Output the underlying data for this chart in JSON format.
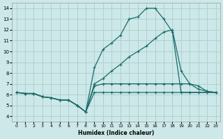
{
  "xlabel": "Humidex (Indice chaleur)",
  "bg_color": "#cde8e8",
  "grid_color": "#b0d0d0",
  "line_color": "#1a6b6b",
  "xlim": [
    -0.5,
    23.5
  ],
  "ylim": [
    3.5,
    14.5
  ],
  "xticks": [
    0,
    1,
    2,
    3,
    4,
    5,
    6,
    7,
    8,
    9,
    10,
    11,
    12,
    13,
    14,
    15,
    16,
    17,
    18,
    19,
    20,
    21,
    22,
    23
  ],
  "yticks": [
    4,
    5,
    6,
    7,
    8,
    9,
    10,
    11,
    12,
    13,
    14
  ],
  "lines": [
    {
      "x": [
        0,
        1,
        2,
        3,
        4,
        5,
        6,
        7,
        8,
        9,
        10,
        11,
        12,
        13,
        14,
        15,
        16,
        17,
        18,
        19,
        20,
        21,
        22,
        23
      ],
      "y": [
        6.2,
        6.1,
        6.1,
        5.8,
        5.7,
        5.5,
        5.5,
        5.0,
        4.4,
        8.5,
        10.2,
        10.8,
        11.5,
        13.0,
        13.2,
        14.0,
        14.0,
        13.0,
        11.8,
        6.2,
        6.2,
        6.2,
        6.2,
        6.2
      ]
    },
    {
      "x": [
        0,
        1,
        2,
        3,
        4,
        5,
        6,
        7,
        8,
        9,
        10,
        11,
        12,
        13,
        14,
        15,
        16,
        17,
        18,
        19,
        20,
        21,
        22,
        23
      ],
      "y": [
        6.2,
        6.1,
        6.1,
        5.8,
        5.7,
        5.5,
        5.5,
        5.0,
        4.4,
        7.0,
        7.5,
        8.2,
        8.8,
        9.5,
        10.0,
        10.5,
        11.2,
        11.8,
        12.0,
        8.2,
        7.0,
        6.5,
        6.3,
        6.2
      ]
    },
    {
      "x": [
        0,
        1,
        2,
        3,
        4,
        5,
        6,
        7,
        8,
        9,
        10,
        11,
        12,
        13,
        14,
        15,
        16,
        17,
        18,
        19,
        20,
        21,
        22,
        23
      ],
      "y": [
        6.2,
        6.1,
        6.1,
        5.8,
        5.7,
        5.5,
        5.5,
        5.0,
        4.4,
        6.8,
        7.0,
        7.0,
        7.0,
        7.0,
        7.0,
        7.0,
        7.0,
        7.0,
        7.0,
        7.0,
        7.0,
        6.8,
        6.3,
        6.2
      ]
    },
    {
      "x": [
        0,
        1,
        2,
        3,
        4,
        5,
        6,
        7,
        8,
        9,
        10,
        11,
        12,
        13,
        14,
        15,
        16,
        17,
        18,
        19,
        20,
        21,
        22,
        23
      ],
      "y": [
        6.2,
        6.1,
        6.1,
        5.8,
        5.7,
        5.5,
        5.5,
        5.0,
        4.4,
        6.2,
        6.2,
        6.2,
        6.2,
        6.2,
        6.2,
        6.2,
        6.2,
        6.2,
        6.2,
        6.2,
        6.2,
        6.2,
        6.2,
        6.2
      ]
    }
  ]
}
